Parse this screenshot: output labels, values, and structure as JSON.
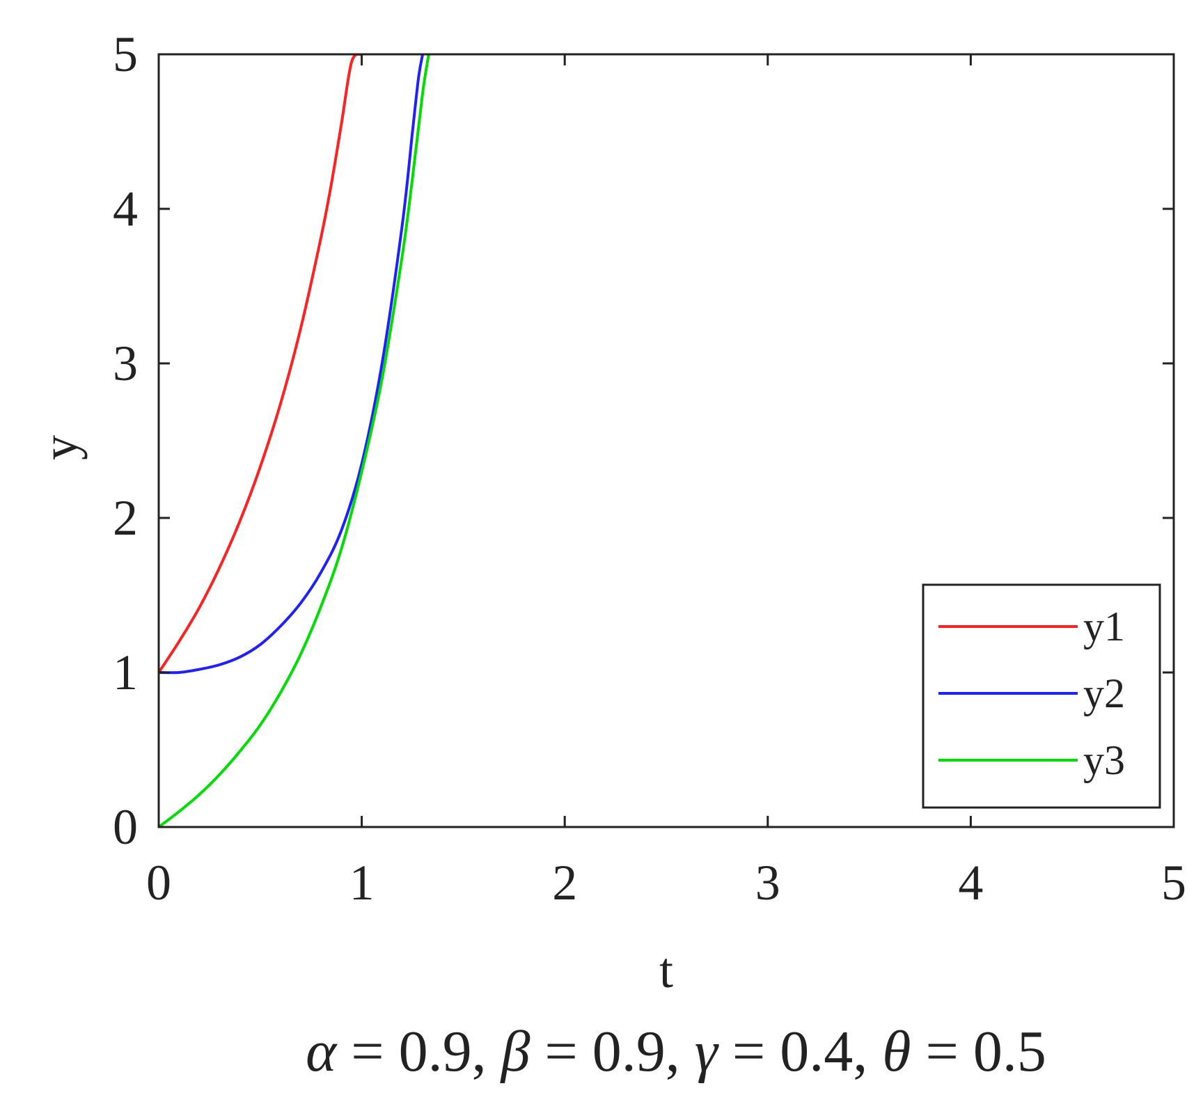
{
  "chart_data": {
    "type": "line",
    "xlabel": "t",
    "ylabel": "y",
    "xlim": [
      0,
      5
    ],
    "ylim": [
      0,
      5
    ],
    "xticks": [
      "0",
      "1",
      "2",
      "3",
      "4",
      "5"
    ],
    "yticks": [
      "0",
      "1",
      "2",
      "3",
      "4",
      "5"
    ],
    "grid": false,
    "legend_position": "bottom-right",
    "caption": {
      "params": [
        {
          "symbol": "α",
          "value": "0.9"
        },
        {
          "symbol": "β",
          "value": "0.9"
        },
        {
          "symbol": "γ",
          "value": "0.4"
        },
        {
          "symbol": "θ",
          "value": "0.5"
        }
      ],
      "equals": " = ",
      "separator": ", "
    },
    "series": [
      {
        "name": "y1",
        "color": "#ff2020",
        "x": [
          0,
          0.1,
          0.2,
          0.3,
          0.4,
          0.5,
          0.6,
          0.7,
          0.8,
          0.85,
          0.9,
          0.95,
          1.0
        ],
        "y": [
          1.0,
          1.2,
          1.42,
          1.68,
          1.98,
          2.33,
          2.74,
          3.23,
          3.82,
          4.16,
          4.55,
          4.95,
          5.0
        ]
      },
      {
        "name": "y2",
        "color": "#2020ff",
        "x": [
          0,
          0.1,
          0.2,
          0.3,
          0.4,
          0.5,
          0.6,
          0.7,
          0.8,
          0.9,
          1.0,
          1.1,
          1.2,
          1.25,
          1.28,
          1.3
        ],
        "y": [
          1.0,
          1.0,
          1.02,
          1.05,
          1.1,
          1.18,
          1.3,
          1.45,
          1.65,
          1.92,
          2.35,
          3.0,
          3.9,
          4.5,
          4.85,
          5.0
        ]
      },
      {
        "name": "y3",
        "color": "#00dd00",
        "x": [
          0,
          0.1,
          0.2,
          0.3,
          0.4,
          0.5,
          0.6,
          0.7,
          0.8,
          0.9,
          1.0,
          1.1,
          1.2,
          1.25,
          1.3,
          1.33
        ],
        "y": [
          0.0,
          0.1,
          0.21,
          0.34,
          0.49,
          0.66,
          0.87,
          1.12,
          1.43,
          1.8,
          2.3,
          2.9,
          3.7,
          4.2,
          4.75,
          5.0
        ]
      }
    ]
  }
}
